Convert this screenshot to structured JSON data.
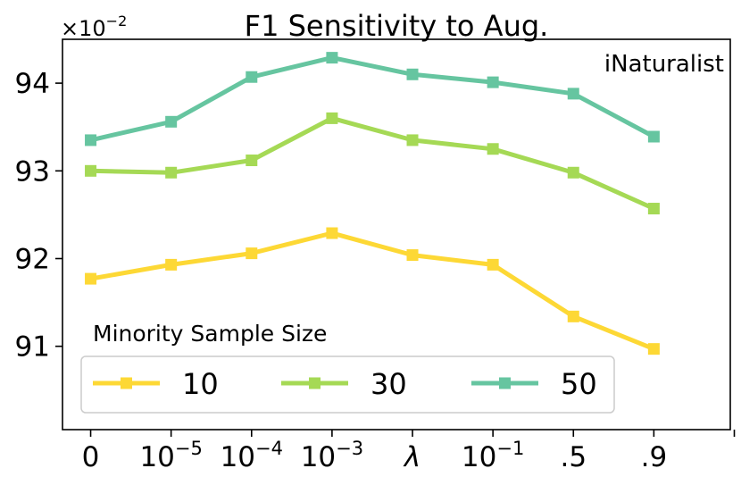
{
  "chart_data": {
    "type": "line",
    "title": "F1 Sensitivity to Aug.",
    "annotation": "iNaturalist",
    "y_multiplier": {
      "base": "×10",
      "exponent": "−2"
    },
    "xlabel": "",
    "ylabel": "",
    "categories": [
      {
        "base": "0",
        "exp": ""
      },
      {
        "base": "10",
        "exp": "−5"
      },
      {
        "base": "10",
        "exp": "−4"
      },
      {
        "base": "10",
        "exp": "−3"
      },
      {
        "base": "λ",
        "exp": "",
        "italic": true
      },
      {
        "base": "10",
        "exp": "−1"
      },
      {
        "base": ".5",
        "exp": ""
      },
      {
        "base": ".9",
        "exp": ""
      }
    ],
    "yticks": [
      91,
      92,
      93,
      94
    ],
    "ylim": [
      90.05,
      94.5
    ],
    "xlim": [
      -0.35,
      7.95
    ],
    "legend_title": "Minority Sample Size",
    "legend_position": "lower-left",
    "grid": false,
    "series": [
      {
        "name": "10",
        "color": "#fdd835",
        "values": [
          91.77,
          91.93,
          92.06,
          92.29,
          92.04,
          91.93,
          91.34,
          90.97
        ]
      },
      {
        "name": "30",
        "color": "#a5d955",
        "values": [
          93.0,
          92.98,
          93.12,
          93.6,
          93.35,
          93.25,
          92.98,
          92.57
        ]
      },
      {
        "name": "50",
        "color": "#66c5a0",
        "values": [
          93.35,
          93.56,
          94.07,
          94.29,
          94.1,
          94.01,
          93.88,
          93.39
        ]
      }
    ]
  }
}
